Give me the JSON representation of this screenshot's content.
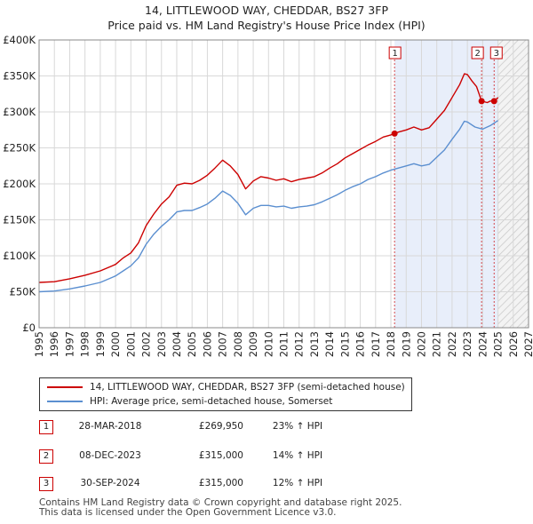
{
  "chart_data": {
    "type": "line",
    "title": "14, LITTLEWOOD WAY, CHEDDAR, BS27 3FP",
    "subtitle": "Price paid vs. HM Land Registry's House Price Index (HPI)",
    "xlabel": "",
    "ylabel": "",
    "xlim": [
      1995,
      2027
    ],
    "ylim": [
      0,
      400000
    ],
    "x_ticks": [
      1995,
      1996,
      1997,
      1998,
      1999,
      2000,
      2001,
      2002,
      2003,
      2004,
      2005,
      2006,
      2007,
      2008,
      2009,
      2010,
      2011,
      2012,
      2013,
      2014,
      2015,
      2016,
      2017,
      2018,
      2019,
      2020,
      2021,
      2022,
      2023,
      2024,
      2025,
      2026,
      2027
    ],
    "y_ticks": [
      {
        "value": 0,
        "label": "£0"
      },
      {
        "value": 50000,
        "label": "£50K"
      },
      {
        "value": 100000,
        "label": "£100K"
      },
      {
        "value": 150000,
        "label": "£150K"
      },
      {
        "value": 200000,
        "label": "£200K"
      },
      {
        "value": 250000,
        "label": "£250K"
      },
      {
        "value": 300000,
        "label": "£300K"
      },
      {
        "value": 350000,
        "label": "£350K"
      },
      {
        "value": 400000,
        "label": "£400K"
      }
    ],
    "grid": true,
    "series": [
      {
        "name": "14, LITTLEWOOD WAY, CHEDDAR, BS27 3FP (semi-detached house)",
        "color": "#cc0000",
        "x": [
          1995.0,
          1996.0,
          1997.0,
          1998.0,
          1999.0,
          2000.0,
          2000.5,
          2001.0,
          2001.5,
          2002.0,
          2002.5,
          2003.0,
          2003.5,
          2004.0,
          2004.5,
          2005.0,
          2005.5,
          2006.0,
          2006.5,
          2007.0,
          2007.5,
          2008.0,
          2008.5,
          2009.0,
          2009.5,
          2010.0,
          2010.5,
          2011.0,
          2011.5,
          2012.0,
          2012.5,
          2013.0,
          2013.5,
          2014.0,
          2014.5,
          2015.0,
          2015.5,
          2016.0,
          2016.5,
          2017.0,
          2017.5,
          2018.0,
          2018.24,
          2018.5,
          2019.0,
          2019.5,
          2020.0,
          2020.5,
          2021.0,
          2021.5,
          2022.0,
          2022.5,
          2022.8,
          2023.0,
          2023.3,
          2023.6,
          2023.93,
          2024.3,
          2024.5,
          2024.75,
          2025.0
        ],
        "y": [
          63000,
          64000,
          68000,
          73000,
          79000,
          88000,
          97000,
          104000,
          118000,
          142000,
          158000,
          172000,
          182000,
          198000,
          201000,
          200000,
          205000,
          212000,
          222000,
          233000,
          225000,
          213000,
          193000,
          204000,
          210000,
          208000,
          205000,
          207000,
          203000,
          206000,
          208000,
          210000,
          215000,
          222000,
          228000,
          236000,
          242000,
          248000,
          254000,
          259000,
          265000,
          268000,
          269950,
          272000,
          275000,
          279000,
          275000,
          278000,
          290000,
          302000,
          320000,
          338000,
          353000,
          352000,
          343000,
          335000,
          315000,
          313000,
          315000,
          315000,
          320000
        ]
      },
      {
        "name": "HPI: Average price, semi-detached house, Somerset",
        "color": "#5b8fd0",
        "x": [
          1995.0,
          1996.0,
          1997.0,
          1998.0,
          1999.0,
          2000.0,
          2000.5,
          2001.0,
          2001.5,
          2002.0,
          2002.5,
          2003.0,
          2003.5,
          2004.0,
          2004.5,
          2005.0,
          2005.5,
          2006.0,
          2006.5,
          2007.0,
          2007.5,
          2008.0,
          2008.5,
          2009.0,
          2009.5,
          2010.0,
          2010.5,
          2011.0,
          2011.5,
          2012.0,
          2012.5,
          2013.0,
          2013.5,
          2014.0,
          2014.5,
          2015.0,
          2015.5,
          2016.0,
          2016.5,
          2017.0,
          2017.5,
          2018.0,
          2018.5,
          2019.0,
          2019.5,
          2020.0,
          2020.5,
          2021.0,
          2021.5,
          2022.0,
          2022.5,
          2022.8,
          2023.0,
          2023.5,
          2024.0,
          2024.5,
          2025.0
        ],
        "y": [
          50000,
          51000,
          54000,
          58000,
          63000,
          72000,
          79000,
          86000,
          97000,
          116000,
          130000,
          141000,
          150000,
          161000,
          163000,
          163000,
          167000,
          172000,
          180000,
          190000,
          184000,
          173000,
          157000,
          166000,
          170000,
          170000,
          168000,
          169000,
          166000,
          168000,
          169000,
          171000,
          175000,
          180000,
          185000,
          191000,
          196000,
          200000,
          206000,
          210000,
          215000,
          219000,
          222000,
          225000,
          228000,
          225000,
          227000,
          237000,
          247000,
          262000,
          276000,
          287000,
          286000,
          279000,
          276000,
          281000,
          288000
        ]
      }
    ],
    "transactions": [
      {
        "num": "1",
        "date": "28-MAR-2018",
        "year": 2018.24,
        "price": "£269,950",
        "value": 269950,
        "hpi": "23% ↑ HPI"
      },
      {
        "num": "2",
        "date": "08-DEC-2023",
        "year": 2023.93,
        "price": "£315,000",
        "value": 315000,
        "hpi": "14% ↑ HPI"
      },
      {
        "num": "3",
        "date": "30-SEP-2024",
        "year": 2024.75,
        "price": "£315,000",
        "value": 315000,
        "hpi": "12% ↑ HPI"
      }
    ],
    "future_shading_from": 2025.0
  },
  "legend": {
    "series1": "14, LITTLEWOOD WAY, CHEDDAR, BS27 3FP (semi-detached house)",
    "series2": "HPI: Average price, semi-detached house, Somerset"
  },
  "footer": {
    "line1": "Contains HM Land Registry data © Crown copyright and database right 2025.",
    "line2": "This data is licensed under the Open Government Licence v3.0."
  },
  "colors": {
    "price": "#cc0000",
    "hpi": "#5b8fd0",
    "highlight": "#e8eefa",
    "grid": "#d8d8d8"
  }
}
